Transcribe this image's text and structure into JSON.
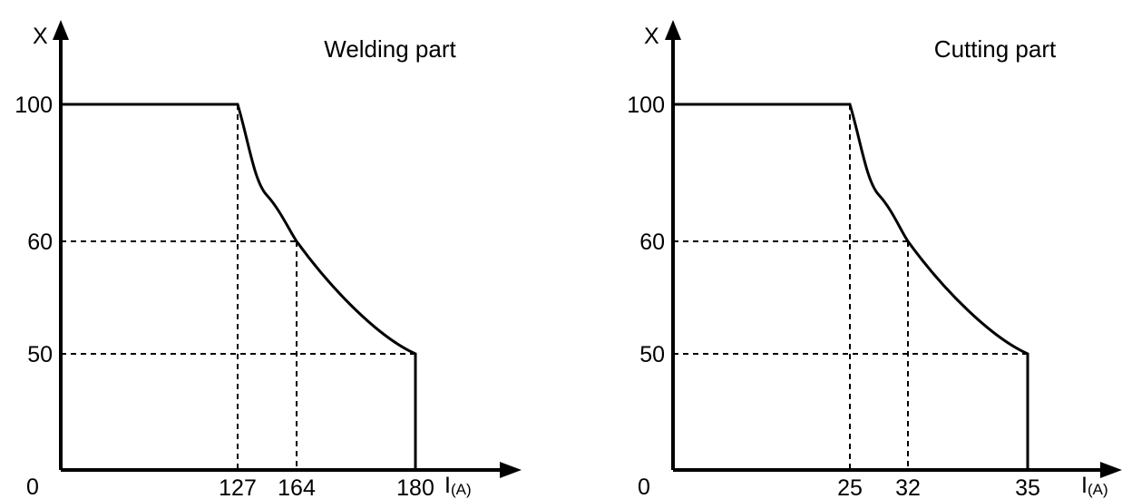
{
  "chart_data": [
    {
      "type": "line",
      "title": "Welding part",
      "ylabel": "X",
      "xlabel_main": "I",
      "xlabel_sub": "(A)",
      "origin_label": "0",
      "y_ticks": [
        "100",
        "60",
        "50"
      ],
      "y_tick_values": [
        100,
        60,
        50
      ],
      "x_ticks": [
        "127",
        "164",
        "180"
      ],
      "x_tick_values": [
        127,
        164,
        180
      ],
      "series": [
        {
          "x": [
            0,
            127,
            164,
            180,
            180
          ],
          "y": [
            100,
            100,
            60,
            50,
            0
          ]
        }
      ],
      "guides": true
    },
    {
      "type": "line",
      "title": "Cutting part",
      "ylabel": "X",
      "xlabel_main": "I",
      "xlabel_sub": "(A)",
      "origin_label": "0",
      "y_ticks": [
        "100",
        "60",
        "50"
      ],
      "y_tick_values": [
        100,
        60,
        50
      ],
      "x_ticks": [
        "25",
        "32",
        "35"
      ],
      "x_tick_values": [
        25,
        32,
        35
      ],
      "series": [
        {
          "x": [
            0,
            25,
            32,
            35,
            35
          ],
          "y": [
            100,
            100,
            60,
            50,
            0
          ]
        }
      ],
      "guides": true
    }
  ]
}
